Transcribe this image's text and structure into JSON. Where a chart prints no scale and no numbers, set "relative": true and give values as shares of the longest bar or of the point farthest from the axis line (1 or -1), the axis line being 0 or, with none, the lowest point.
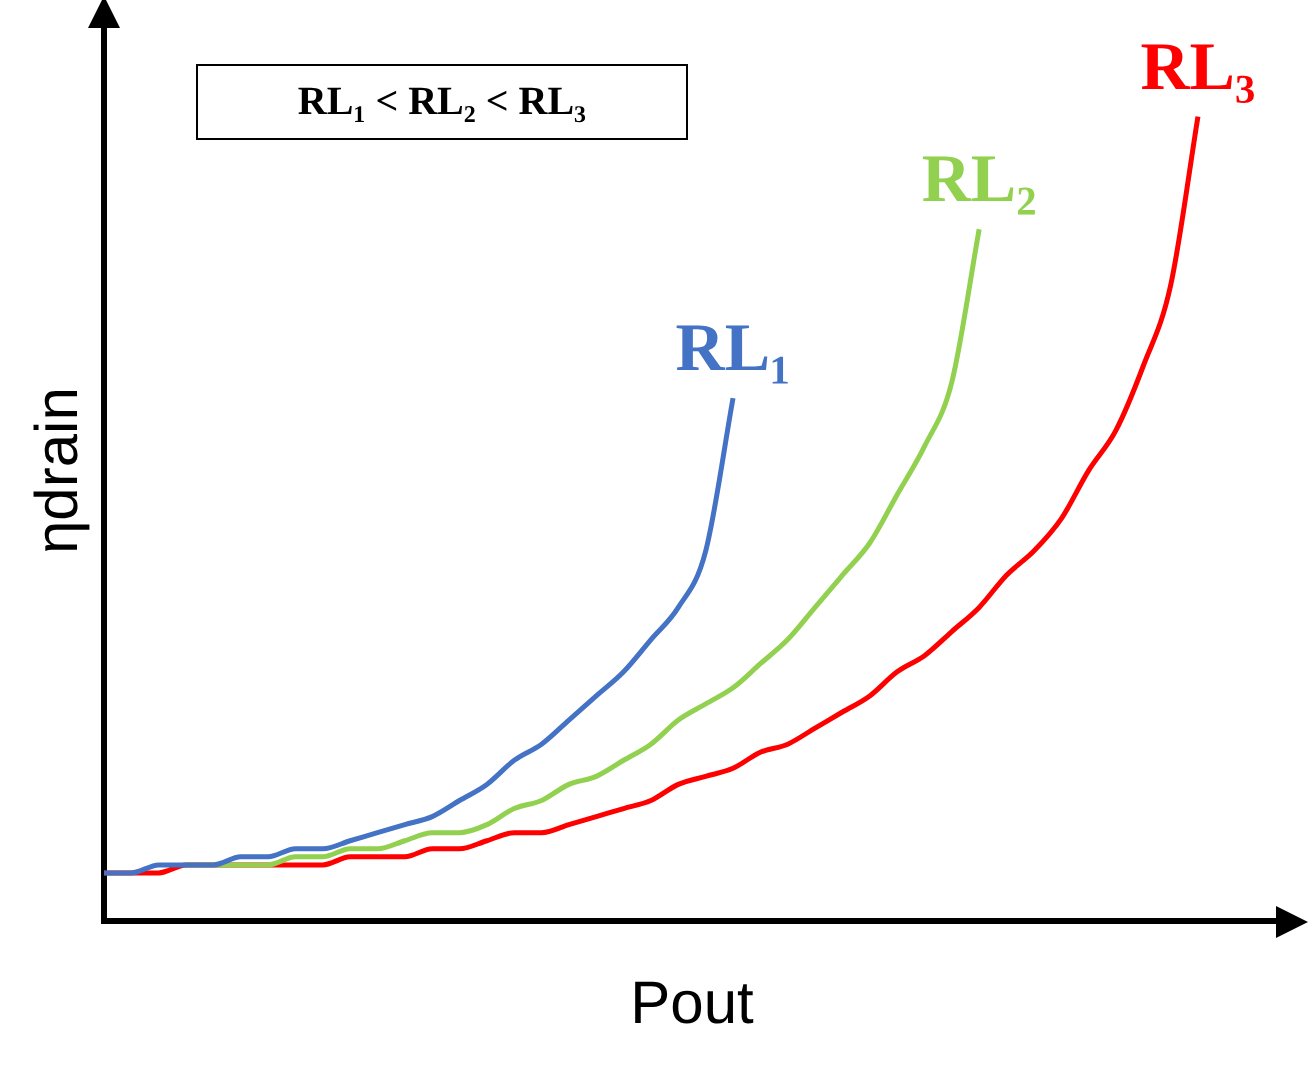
{
  "chart_data": {
    "type": "line",
    "relative": true,
    "xlabel": "Pout",
    "ylabel": "ηdrain",
    "grid": false,
    "legend": false,
    "marker": "none",
    "line_style": "solid",
    "annotations": [
      "RL₁ < RL₂ < RL₃"
    ],
    "categories": [
      null,
      null,
      null,
      null,
      null,
      null,
      null,
      null,
      null,
      null,
      null,
      null,
      null,
      null,
      null,
      null,
      null,
      null,
      null,
      null,
      null,
      null,
      null,
      null,
      null,
      null,
      null,
      null,
      null,
      null,
      null,
      null,
      null,
      null,
      null,
      null,
      null,
      null,
      null,
      null,
      null,
      null,
      null,
      null
    ],
    "series": [
      {
        "name": "RL₁",
        "color": "#4472c4",
        "values": [
          0.06,
          0.06,
          0.07,
          0.07,
          0.07,
          0.08,
          0.08,
          0.09,
          0.09,
          0.1,
          0.11,
          0.12,
          0.13,
          0.15,
          0.17,
          0.2,
          0.22,
          0.25,
          0.28,
          0.31,
          0.35,
          0.39,
          0.46,
          0.65,
          null,
          null,
          null,
          null,
          null,
          null,
          null,
          null,
          null,
          null,
          null,
          null,
          null,
          null,
          null,
          null,
          null,
          null,
          null,
          null
        ]
      },
      {
        "name": "RL₂",
        "color": "#92d050",
        "values": [
          null,
          null,
          null,
          0.07,
          0.07,
          0.07,
          0.07,
          0.08,
          0.08,
          0.09,
          0.09,
          0.1,
          0.11,
          0.11,
          0.12,
          0.14,
          0.15,
          0.17,
          0.18,
          0.2,
          0.22,
          0.25,
          0.27,
          0.29,
          0.32,
          0.35,
          0.39,
          0.43,
          0.47,
          0.53,
          0.59,
          0.67,
          0.86,
          null,
          null,
          null,
          null,
          null,
          null,
          null,
          null,
          null,
          null,
          null
        ]
      },
      {
        "name": "RL₃",
        "color": "#ff0000",
        "values": [
          0.06,
          0.06,
          0.06,
          0.07,
          0.07,
          0.07,
          0.07,
          0.07,
          0.07,
          0.08,
          0.08,
          0.08,
          0.09,
          0.09,
          0.1,
          0.11,
          0.11,
          0.12,
          0.13,
          0.14,
          0.15,
          0.17,
          0.18,
          0.19,
          0.21,
          0.22,
          0.24,
          0.26,
          0.28,
          0.31,
          0.33,
          0.36,
          0.39,
          0.43,
          0.46,
          0.5,
          0.56,
          0.61,
          0.69,
          0.79,
          1,
          null,
          null,
          null
        ]
      }
    ]
  }
}
